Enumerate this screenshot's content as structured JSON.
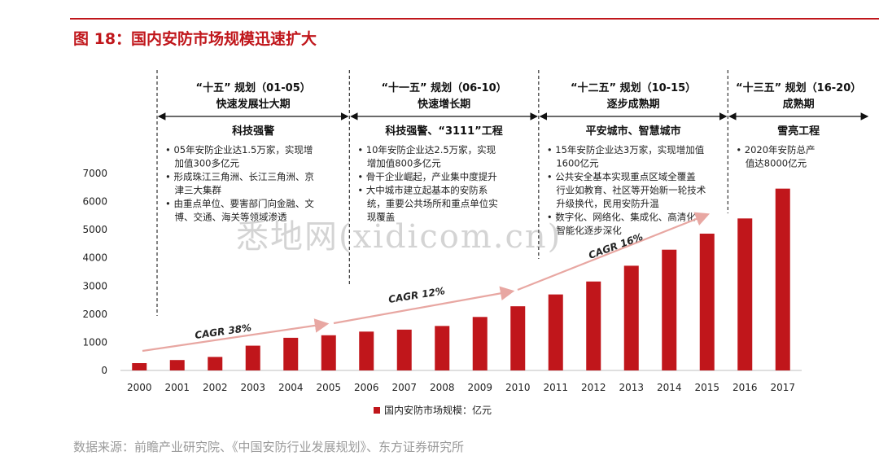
{
  "title": "图 18：国内安防市场规模迅速扩大",
  "source": "数据来源：前瞻产业研究院、《中国安防行业发展规划》、东方证券研究所",
  "watermark": "悉地网(xidicom.cn)",
  "colors": {
    "accent": "#c0161b",
    "bar": "#c0161b",
    "arrow": "#e8a7a2"
  },
  "phases": [
    {
      "title": "“十五” 规划（01-05）",
      "subtitle": "快速发展壮大期",
      "theme": "科技强警",
      "notes": [
        "• 05年安防企业达1.5万家，实现增",
        "  加值300多亿元",
        "• 形成珠江三角洲、长江三角洲、京",
        "  津三大集群",
        "• 由重点单位、要害部门向金融、文",
        "  博、交通、海关等领域渗透"
      ]
    },
    {
      "title": "“十一五” 规划（06-10）",
      "subtitle": "快速增长期",
      "theme": "科技强警、“3111”工程",
      "notes": [
        "• 10年安防企业达2.5万家，实现",
        "  增加值800多亿元",
        "• 骨干企业崛起，产业集中度提升",
        "• 大中城市建立起基本的安防系",
        "  统，重要公共场所和重点单位实",
        "  现覆盖"
      ]
    },
    {
      "title": "“十二五” 规划（10-15）",
      "subtitle": "逐步成熟期",
      "theme": "平安城市、智慧城市",
      "notes": [
        "• 15年安防企业达3万家，实现增加值",
        "  1600亿元",
        "• 公共安全基本实现重点区域全覆盖",
        "  行业如教育、社区等开始新一轮技术",
        "  升级换代，民用安防升温",
        "• 数字化、网络化、集成化、高清化",
        "  智能化逐步深化"
      ]
    },
    {
      "title": "“十三五” 规划（16-20）",
      "subtitle": "成熟期",
      "theme": "雪亮工程",
      "notes": [
        "• 2020年安防总产",
        "  值达8000亿元"
      ]
    }
  ],
  "cagr_labels": [
    "CAGR 38%",
    "CAGR 12%",
    "CAGR 16%"
  ],
  "chart_data": {
    "type": "bar",
    "categories": [
      "2000",
      "2001",
      "2002",
      "2003",
      "2004",
      "2005",
      "2006",
      "2007",
      "2008",
      "2009",
      "2010",
      "2011",
      "2012",
      "2013",
      "2014",
      "2015",
      "2016",
      "2017"
    ],
    "series": [
      {
        "name": "国内安防市场规模：亿元",
        "values": [
          260,
          370,
          480,
          880,
          1160,
          1250,
          1380,
          1450,
          1580,
          1900,
          2280,
          2700,
          3160,
          3720,
          4290,
          4860,
          5400,
          6460
        ]
      }
    ],
    "yticks": [
      0,
      1000,
      2000,
      3000,
      4000,
      5000,
      6000,
      7000
    ],
    "ylim": [
      0,
      7000
    ],
    "legend": "bottom"
  }
}
